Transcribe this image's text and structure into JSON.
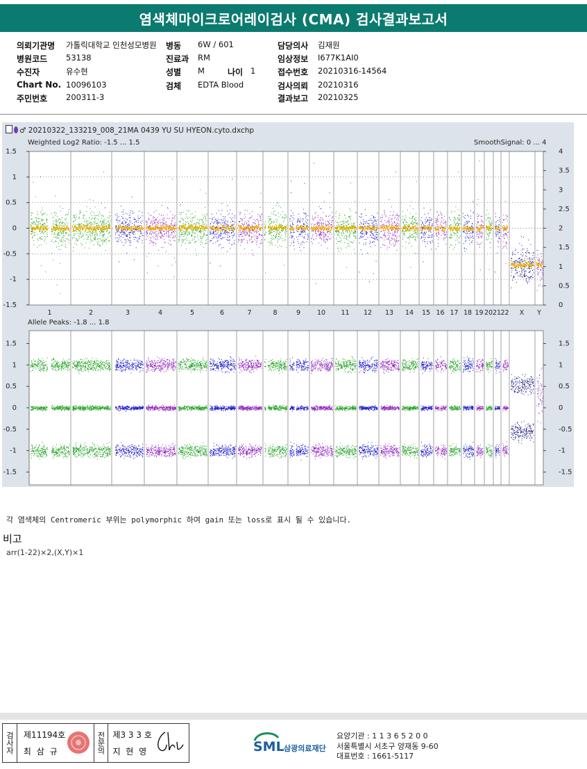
{
  "report_title": "염색체마이크로어레이검사 (CMA) 검사결과보고서",
  "patient_info": {
    "hospital_label": "의뢰기관명",
    "hospital_value": "가톨릭대학교 인천성모병원",
    "ward_label": "병동",
    "ward_value": "6W / 601",
    "doctor_label": "담당의사",
    "doctor_value": "김재원",
    "code_label": "병원코드",
    "code_value": "53138",
    "dept_label": "진료과",
    "dept_value": "RM",
    "clinical_label": "임상정보",
    "clinical_value": "I677K1AI0",
    "patient_label": "수진자",
    "patient_value": "유수현",
    "sex_label": "성별",
    "sex_value": "M",
    "age_label": "나이",
    "age_value": "1",
    "receipt_label": "접수번호",
    "receipt_value": "20210316-14564",
    "chart_label": "Chart No.",
    "chart_value": "10096103",
    "specimen_label": "검체",
    "specimen_value": "EDTA Blood",
    "request_label": "검사의뢰",
    "request_value": "20210316",
    "rrn_label": "주민번호",
    "rrn_value": "200311-3",
    "report_label": "결과보고",
    "report_value": "20210325"
  },
  "plot": {
    "filename": "20210322_133219_008_21MA 0439 YU SU HYEON.cyto.dxchp",
    "upper_title": "Weighted Log2 Ratio: -1.5 ... 1.5",
    "smooth_title": "SmoothSignal: 0 ... 4",
    "lower_title": "Allele Peaks: -1.8 ... 1.8",
    "upper_left_ticks": [
      "1.5",
      "1",
      "0.5",
      "0",
      "-0.5",
      "-1",
      "-1.5"
    ],
    "upper_right_ticks": [
      "4",
      "3.5",
      "3",
      "2.5",
      "2",
      "1.5",
      "1",
      "0.5",
      "0"
    ],
    "lower_left_ticks": [
      "1.5",
      "1",
      "0.5",
      "0",
      "-0.5",
      "-1",
      "-1.5"
    ],
    "lower_right_ticks": [
      "1.5",
      "1",
      "0.5",
      "0",
      "-0.5",
      "-1",
      "-1.5"
    ],
    "chromosomes": [
      "1",
      "2",
      "3",
      "4",
      "5",
      "6",
      "7",
      "8",
      "9",
      "10",
      "11",
      "12",
      "13",
      "14",
      "15",
      "16",
      "17",
      "18",
      "19",
      "20",
      "21",
      "22",
      "X",
      "Y"
    ],
    "colors": {
      "green": "#1fa01f",
      "blue": "#1a17c9",
      "purple": "#8a1ab8",
      "navy": "#18157a",
      "smooth": "#f2b200"
    }
  },
  "note": "각 염색체의 Centromeric 부위는 polymorphic 하여 gain 또는 loss로 표시 될 수 있습니다.",
  "remarks_title": "비고",
  "remarks_text": "arr(1-22)×2,(X,Y)×1",
  "signature": {
    "lab_label": "검사자",
    "lab_license": "제11194호",
    "lab_name": "최 삼 규",
    "spec_label": "전문의",
    "spec_license": "제3 3 3 호",
    "spec_name": "지 현 영"
  },
  "footer": {
    "logo_text": "SML",
    "org_name": "삼광의료재단",
    "inst_code": "요양기관 : 1 1 3 6 5 2 0 0",
    "address": "서울특별시 서초구 양재동 9-60",
    "phone": "대표번호 : 1661-5117"
  }
}
